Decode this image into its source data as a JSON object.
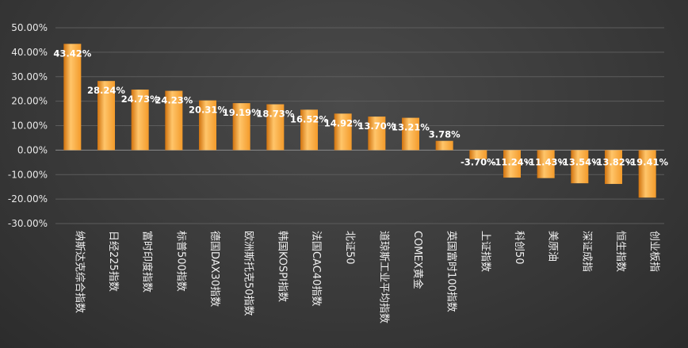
{
  "chart_data": {
    "type": "bar",
    "title": "",
    "xlabel": "",
    "ylabel": "",
    "ylim": [
      -30,
      50
    ],
    "yticks": [
      50,
      40,
      30,
      20,
      10,
      0,
      -10,
      -20,
      -30
    ],
    "ytick_labels": [
      "50.00%",
      "40.00%",
      "30.00%",
      "20.00%",
      "10.00%",
      "0.00%",
      "-10.00%",
      "-20.00%",
      "-30.00%"
    ],
    "grid": true,
    "legend": "none",
    "categories": [
      "纳斯达克综合指数",
      "日经225指数",
      "富时印度指数",
      "标普500指数",
      "德国DAX30指数",
      "欧洲斯托克50指数",
      "韩国KOSPI指数",
      "法国CAC40指数",
      "北证50",
      "道琼斯工业平均指数",
      "COMEX黄金",
      "英国富时100指数",
      "上证指数",
      "科创50",
      "美原油",
      "深证成指",
      "恒生指数",
      "创业板指"
    ],
    "values": [
      43.42,
      28.24,
      24.73,
      24.23,
      20.31,
      19.19,
      18.73,
      16.52,
      14.92,
      13.7,
      13.21,
      3.78,
      -3.7,
      -11.24,
      -11.43,
      -13.54,
      -13.82,
      -19.41
    ],
    "value_labels": [
      "43.42%",
      "28.24%",
      "24.73%",
      "24.23%",
      "20.31%",
      "19.19%",
      "18.73%",
      "16.52%",
      "14.92%",
      "13.70%",
      "13.21%",
      "3.78%",
      "-3.70%",
      "-11.24%",
      "-11.43%",
      "-13.54%",
      "-13.82%",
      "-19.41%"
    ],
    "colors": {
      "bar_light": "#ffc56a",
      "bar_mid": "#f39a2a",
      "bar_dark": "#d0720e",
      "grid": "#5c5c5c",
      "axis": "#8a8a8a"
    }
  }
}
